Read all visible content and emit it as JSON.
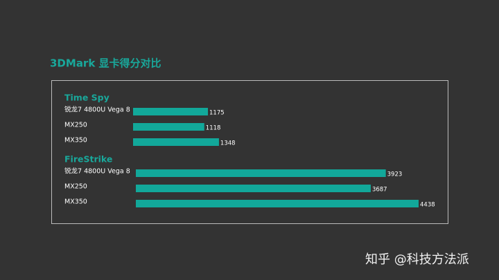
{
  "title": "3DMark 显卡得分对比",
  "watermark": "知乎 @科技方法派",
  "chart_data": [
    {
      "type": "bar",
      "title": "Time Spy",
      "categories": [
        "锐龙7 4800U Vega 8",
        "MX250",
        "MX350"
      ],
      "values": [
        1175,
        1118,
        1348
      ],
      "color": "#12a89a"
    },
    {
      "type": "bar",
      "title": "FireStrike",
      "categories": [
        "锐龙7 4800U Vega 8",
        "MX250",
        "MX350"
      ],
      "values": [
        3923,
        3687,
        4438
      ],
      "color": "#12a89a"
    }
  ]
}
